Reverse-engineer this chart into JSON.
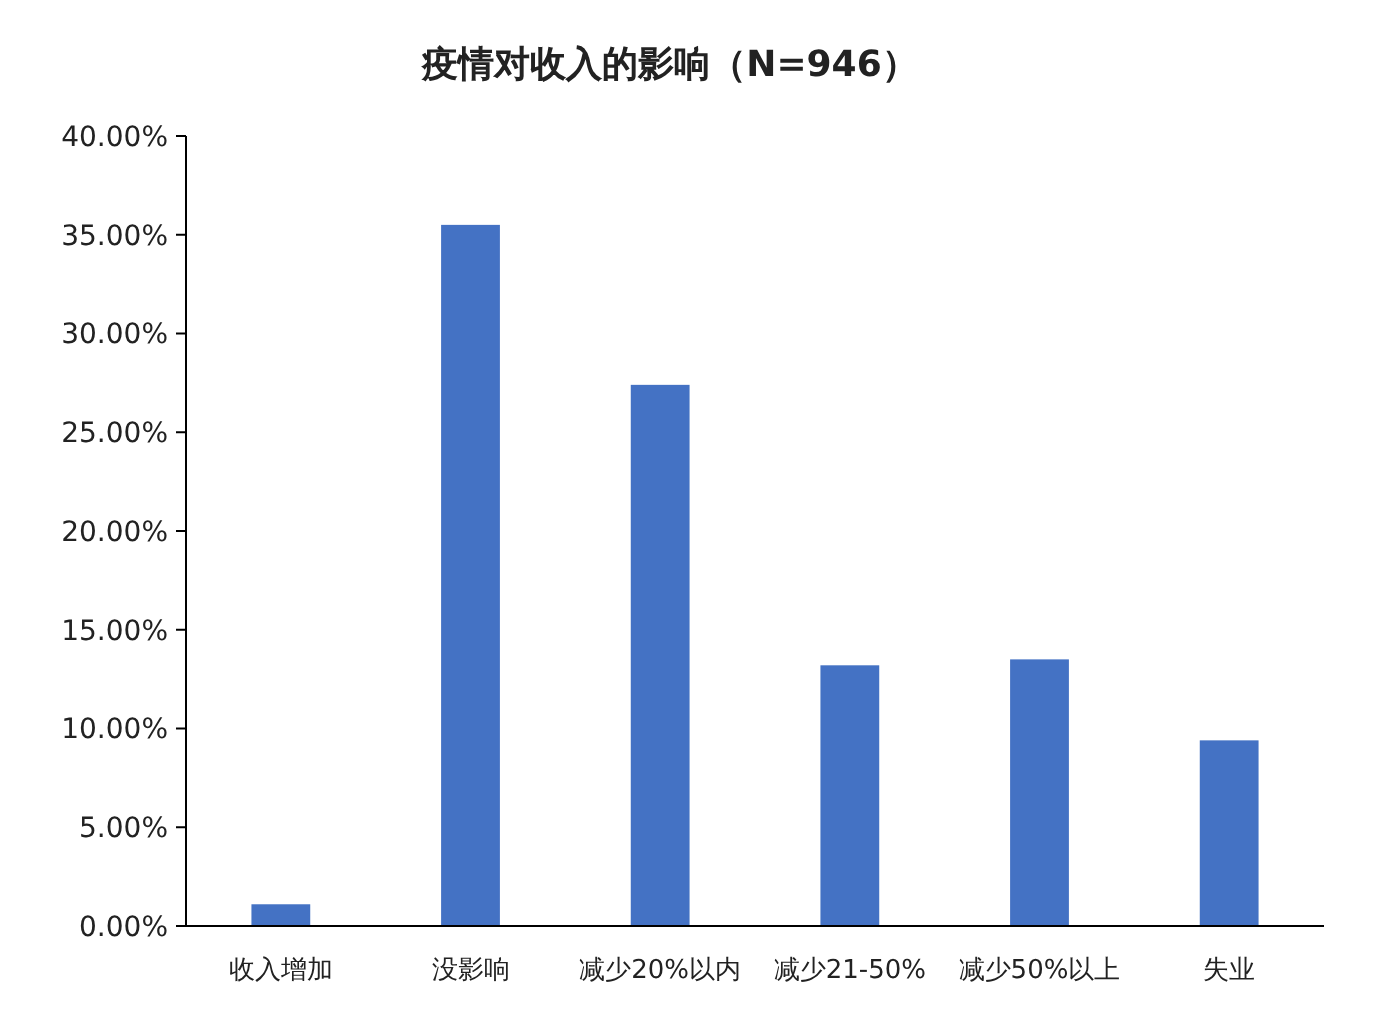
{
  "chart_data": {
    "type": "bar",
    "title": "疫情对收入的影响（N=946）",
    "categories": [
      "收入增加",
      "没影响",
      "减少20%以内",
      "减少21-50%",
      "减少50%以上",
      "失业"
    ],
    "values": [
      1.1,
      35.5,
      27.4,
      13.2,
      13.5,
      9.4
    ],
    "color": "#4472c4",
    "ylim": [
      0,
      40
    ],
    "yticks": [
      {
        "value": 0,
        "label": "0.00%"
      },
      {
        "value": 5,
        "label": "5.00%"
      },
      {
        "value": 10,
        "label": "10.00%"
      },
      {
        "value": 15,
        "label": "15.00%"
      },
      {
        "value": 20,
        "label": "20.00%"
      },
      {
        "value": 25,
        "label": "25.00%"
      },
      {
        "value": 30,
        "label": "30.00%"
      },
      {
        "value": 35,
        "label": "35.00%"
      },
      {
        "value": 40,
        "label": "40.00%"
      }
    ],
    "grid": false
  }
}
